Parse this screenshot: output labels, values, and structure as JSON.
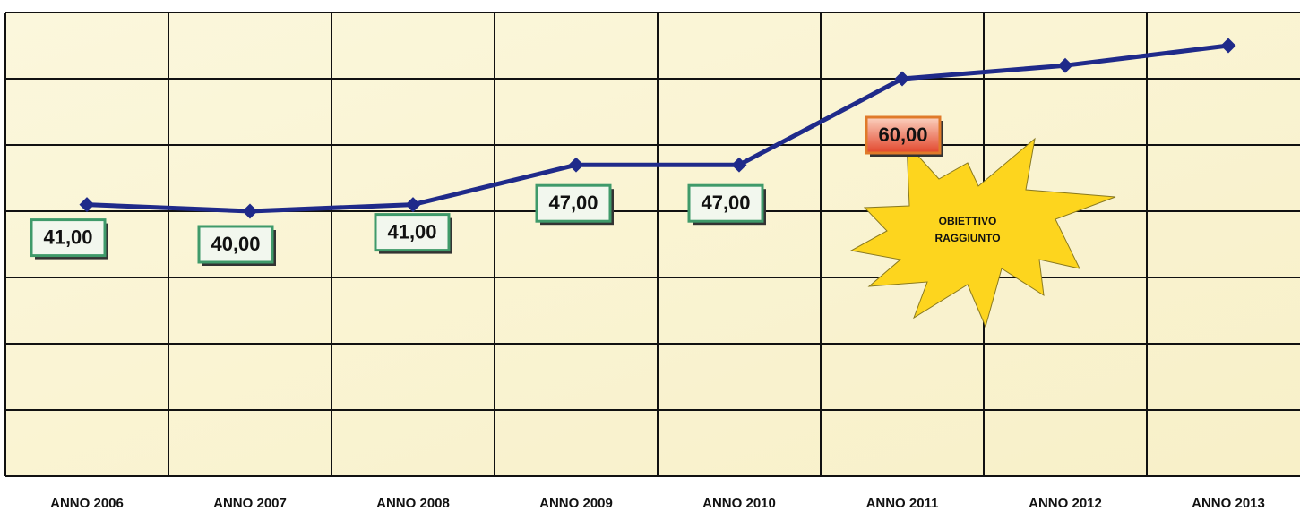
{
  "chart_data": {
    "type": "line",
    "categories": [
      "ANNO 2006",
      "ANNO 2007",
      "ANNO 2008",
      "ANNO 2009",
      "ANNO 2010",
      "ANNO 2011",
      "ANNO 2012",
      "ANNO 2013"
    ],
    "series": [
      {
        "color": "#1f2a8a",
        "values": [
          41,
          40,
          41,
          47,
          47,
          60,
          62,
          65
        ],
        "value_labels": [
          "41,00",
          "40,00",
          "41,00",
          "47,00",
          "47,00",
          "60,00",
          null,
          null
        ]
      }
    ],
    "ylim": [
      0,
      70
    ],
    "yticks": [
      0,
      10,
      20,
      30,
      40,
      50,
      60,
      70
    ],
    "grid": true,
    "annotation": [
      "OBIETTIVO",
      "RAGGIUNTO"
    ]
  }
}
